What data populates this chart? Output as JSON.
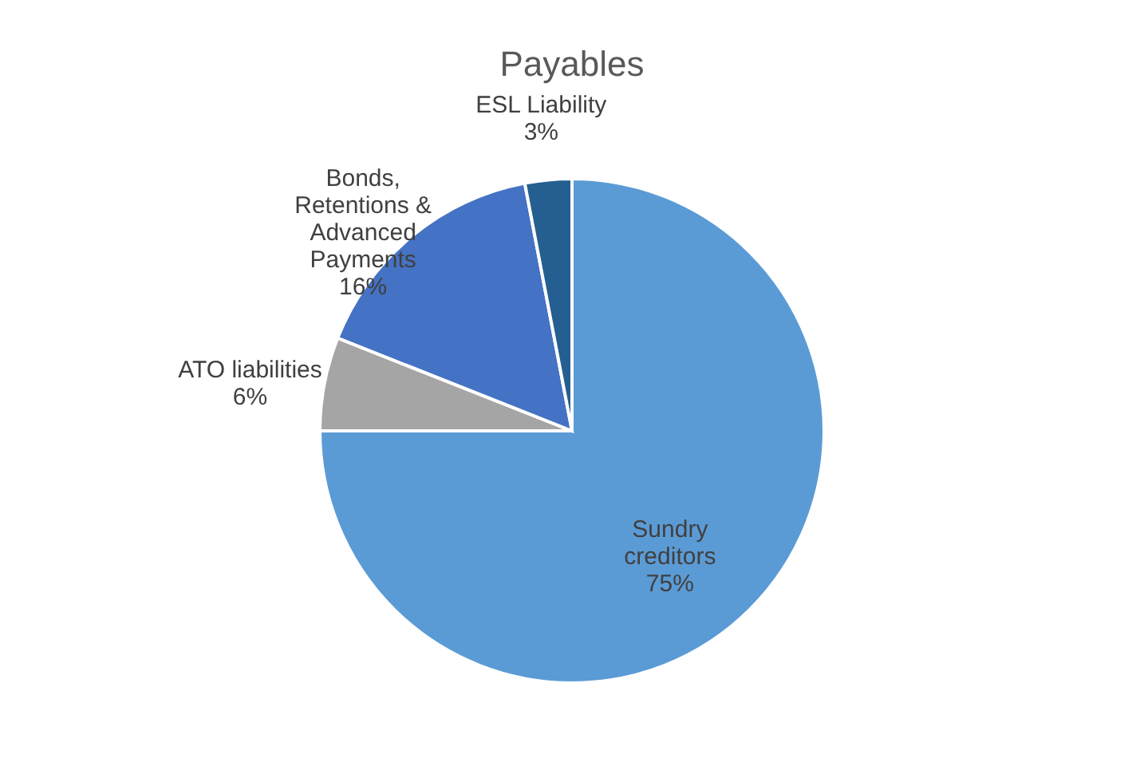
{
  "chart_data": {
    "type": "pie",
    "title": "Payables",
    "categories": [
      "Sundry creditors",
      "ATO liabilities",
      "Bonds, Retentions & Advanced Payments",
      "ESL Liability"
    ],
    "values": [
      75,
      6,
      16,
      3
    ],
    "colors": [
      "#5b9bd5",
      "#a5a5a5",
      "#4472c4",
      "#255e91"
    ],
    "value_labels": [
      "75%",
      "6%",
      "16%",
      "3%"
    ],
    "legend": false
  }
}
